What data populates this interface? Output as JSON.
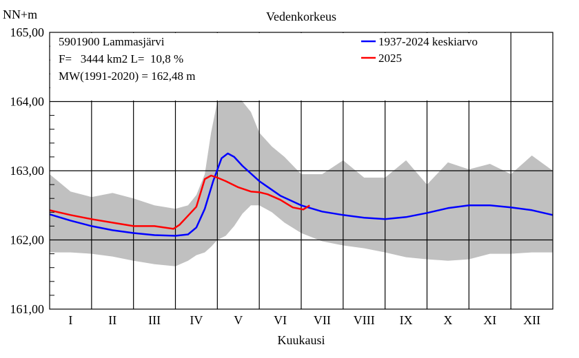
{
  "chart_data": {
    "type": "line",
    "title": "Vedenkorkeus",
    "ylabel": "NN+m",
    "xlabel": "Kuukausi",
    "ylim": [
      161.0,
      165.0
    ],
    "y_ticks": [
      "161,00",
      "162,00",
      "163,00",
      "164,00",
      "165,00"
    ],
    "x_range_months": [
      0,
      12
    ],
    "categories": [
      "I",
      "II",
      "III",
      "IV",
      "V",
      "VI",
      "VII",
      "VIII",
      "IX",
      "X",
      "XI",
      "XII"
    ],
    "info_lines": [
      "5901900 Lammasjärvi",
      "F=   3444 km2 L=  10,8 %",
      "MW(1991-2020) = 162,48 m"
    ],
    "legend_position": "top-right",
    "series": [
      {
        "name": "1937-2024 keskiarvo",
        "color": "#0000ff",
        "x": [
          0,
          0.5,
          1,
          1.5,
          2,
          2.5,
          3,
          3.3,
          3.5,
          3.7,
          3.9,
          4.1,
          4.25,
          4.4,
          4.6,
          5.0,
          5.5,
          6.0,
          6.5,
          7.0,
          7.5,
          8.0,
          8.5,
          9.0,
          9.5,
          10.0,
          10.5,
          11.0,
          11.5,
          12.0
        ],
        "values": [
          162.37,
          162.28,
          162.2,
          162.14,
          162.1,
          162.07,
          162.06,
          162.08,
          162.18,
          162.45,
          162.85,
          163.18,
          163.25,
          163.2,
          163.07,
          162.85,
          162.64,
          162.5,
          162.41,
          162.36,
          162.32,
          162.3,
          162.33,
          162.39,
          162.46,
          162.5,
          162.5,
          162.47,
          162.43,
          162.36
        ]
      },
      {
        "name": "2025",
        "color": "#ff0000",
        "x": [
          0,
          0.5,
          1,
          1.5,
          2,
          2.5,
          2.95,
          3.1,
          3.3,
          3.5,
          3.7,
          3.85,
          4.0,
          4.2,
          4.5,
          4.8,
          5.0,
          5.2,
          5.5,
          5.8,
          6.05,
          6.2
        ],
        "values": [
          162.43,
          162.36,
          162.3,
          162.25,
          162.2,
          162.2,
          162.16,
          162.22,
          162.35,
          162.48,
          162.88,
          162.93,
          162.9,
          162.85,
          162.76,
          162.7,
          162.69,
          162.66,
          162.58,
          162.47,
          162.44,
          162.5
        ]
      }
    ],
    "range_band": {
      "color": "#c0c0c0",
      "x": [
        0,
        0.5,
        1,
        1.5,
        2,
        2.5,
        3,
        3.3,
        3.5,
        3.7,
        3.85,
        4.0,
        4.2,
        4.4,
        4.6,
        4.8,
        5.0,
        5.3,
        5.6,
        6.0,
        6.5,
        7.0,
        7.5,
        8.0,
        8.5,
        9.0,
        9.5,
        10.0,
        10.5,
        11.0,
        11.5,
        12.0
      ],
      "max": [
        162.95,
        162.7,
        162.62,
        162.68,
        162.6,
        162.5,
        162.45,
        162.5,
        162.65,
        162.95,
        163.55,
        164.0,
        164.05,
        164.18,
        164.0,
        163.85,
        163.55,
        163.35,
        163.2,
        162.95,
        162.95,
        163.15,
        162.9,
        162.9,
        163.15,
        162.8,
        163.12,
        163.02,
        163.1,
        162.95,
        163.22,
        163.0
      ],
      "min": [
        161.82,
        161.82,
        161.8,
        161.76,
        161.7,
        161.65,
        161.62,
        161.7,
        161.78,
        161.82,
        161.9,
        162.0,
        162.06,
        162.2,
        162.38,
        162.5,
        162.5,
        162.4,
        162.25,
        162.1,
        161.98,
        161.92,
        161.88,
        161.82,
        161.75,
        161.72,
        161.7,
        161.72,
        161.8,
        161.8,
        161.82,
        161.82
      ]
    }
  }
}
